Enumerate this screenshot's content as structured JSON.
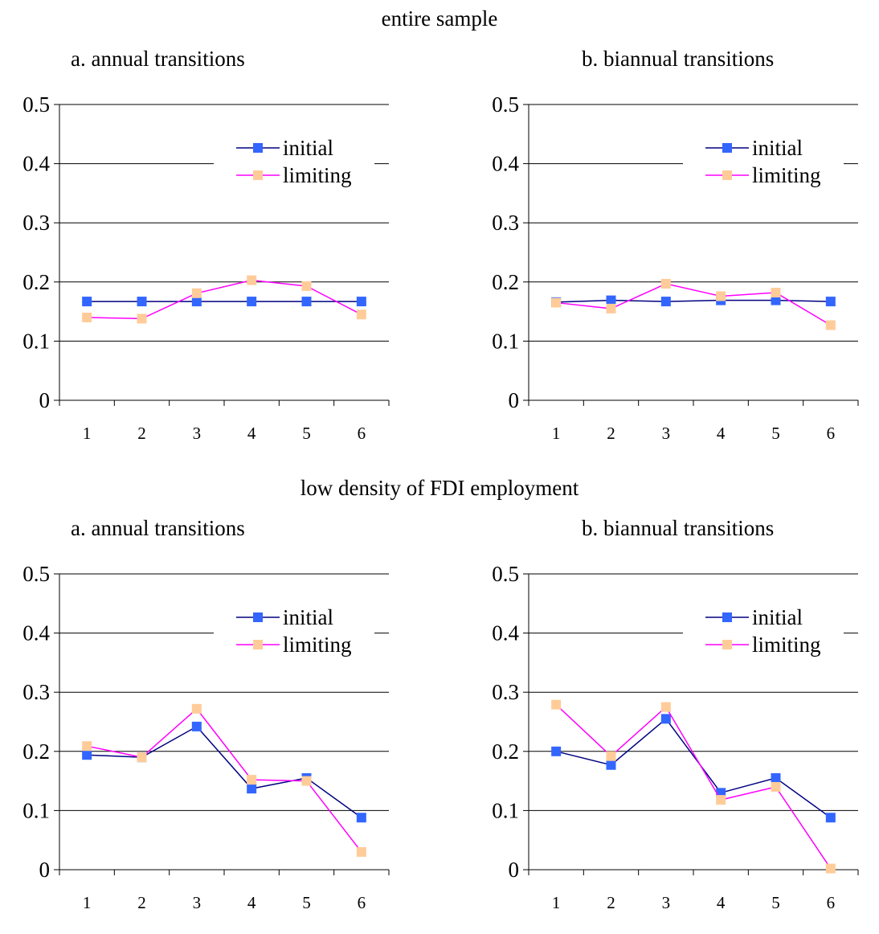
{
  "chart_data": [
    {
      "type": "line",
      "group": "entire sample",
      "title": "a. annual transitions",
      "categories": [
        "1",
        "2",
        "3",
        "4",
        "5",
        "6"
      ],
      "ylim": [
        0,
        0.5
      ],
      "yticks": [
        "0",
        "0.1",
        "0.2",
        "0.3",
        "0.4",
        "0.5"
      ],
      "grid": true,
      "legend_position": "top-right",
      "series": [
        {
          "name": "initial",
          "color": "#000080",
          "marker": "#3366ff",
          "values": [
            0.167,
            0.167,
            0.167,
            0.167,
            0.167,
            0.167
          ]
        },
        {
          "name": "limiting",
          "color": "#ff00ff",
          "marker": "#ffcc99",
          "values": [
            0.14,
            0.138,
            0.181,
            0.203,
            0.193,
            0.145
          ]
        }
      ]
    },
    {
      "type": "line",
      "group": "entire sample",
      "title": "b. biannual transitions",
      "categories": [
        "1",
        "2",
        "3",
        "4",
        "5",
        "6"
      ],
      "ylim": [
        0,
        0.5
      ],
      "yticks": [
        "0",
        "0.1",
        "0.2",
        "0.3",
        "0.4",
        "0.5"
      ],
      "grid": true,
      "legend_position": "top-right",
      "series": [
        {
          "name": "initial",
          "color": "#000080",
          "marker": "#3366ff",
          "values": [
            0.166,
            0.169,
            0.167,
            0.169,
            0.169,
            0.167
          ]
        },
        {
          "name": "limiting",
          "color": "#ff00ff",
          "marker": "#ffcc99",
          "values": [
            0.165,
            0.155,
            0.197,
            0.176,
            0.182,
            0.127
          ]
        }
      ]
    },
    {
      "type": "line",
      "group": "low density of FDI employment",
      "title": "a. annual transitions",
      "categories": [
        "1",
        "2",
        "3",
        "4",
        "5",
        "6"
      ],
      "ylim": [
        0,
        0.5
      ],
      "yticks": [
        "0",
        "0.1",
        "0.2",
        "0.3",
        "0.4",
        "0.5"
      ],
      "grid": true,
      "legend_position": "top-right",
      "series": [
        {
          "name": "initial",
          "color": "#000080",
          "marker": "#3366ff",
          "values": [
            0.194,
            0.19,
            0.242,
            0.137,
            0.155,
            0.088
          ]
        },
        {
          "name": "limiting",
          "color": "#ff00ff",
          "marker": "#ffcc99",
          "values": [
            0.209,
            0.19,
            0.272,
            0.152,
            0.15,
            0.03
          ]
        }
      ]
    },
    {
      "type": "line",
      "group": "low density of FDI employment",
      "title": "b. biannual transitions",
      "categories": [
        "1",
        "2",
        "3",
        "4",
        "5",
        "6"
      ],
      "ylim": [
        0,
        0.5
      ],
      "yticks": [
        "0",
        "0.1",
        "0.2",
        "0.3",
        "0.4",
        "0.5"
      ],
      "grid": true,
      "legend_position": "top-right",
      "series": [
        {
          "name": "initial",
          "color": "#000080",
          "marker": "#3366ff",
          "values": [
            0.2,
            0.177,
            0.255,
            0.13,
            0.155,
            0.088
          ]
        },
        {
          "name": "limiting",
          "color": "#ff00ff",
          "marker": "#ffcc99",
          "values": [
            0.279,
            0.192,
            0.275,
            0.118,
            0.14,
            0.002
          ]
        }
      ]
    }
  ],
  "groups": [
    "entire sample",
    "low density of FDI employment"
  ]
}
